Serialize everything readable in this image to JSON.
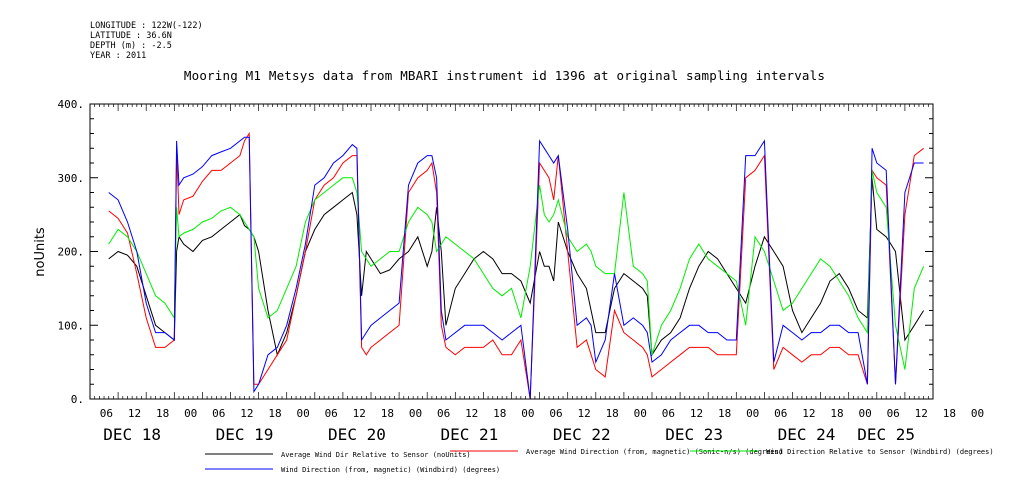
{
  "meta": {
    "longitude": "LONGITUDE : 122W(-122)",
    "latitude": "LATITUDE : 36.6N",
    "depth": "DEPTH (m) : -2.5",
    "year": "YEAR : 2011"
  },
  "chart_data": {
    "type": "line",
    "title": "Mooring M1 Metsys data from MBARI instrument id 1396 at original sampling intervals",
    "ylabel": "noUnits",
    "xlabel": "",
    "ylim": [
      0,
      400
    ],
    "yticks": [
      "0.",
      "100.",
      "200.",
      "300.",
      "400."
    ],
    "xlim": [
      0,
      180
    ],
    "x_unit": "hours since DEC 18 00:00",
    "hour_ticks": [
      "06",
      "12",
      "18",
      "00",
      "06",
      "12",
      "18",
      "00",
      "06",
      "12",
      "18",
      "00",
      "06",
      "12",
      "18",
      "00",
      "06",
      "12",
      "18",
      "00",
      "06",
      "12",
      "18",
      "00",
      "06",
      "12",
      "18",
      "00",
      "06",
      "12",
      "18",
      "00"
    ],
    "day_labels": [
      "DEC 18",
      "DEC 19",
      "DEC 20",
      "DEC 21",
      "DEC 22",
      "DEC 23",
      "DEC 24",
      "DEC 25"
    ],
    "grid": false,
    "legend_position": "bottom",
    "series": [
      {
        "name": "Average Wind Dir Relative to Sensor (noUnits)",
        "color": "#000000",
        "x": [
          4,
          6,
          8,
          10,
          12,
          14,
          16,
          18,
          18.5,
          19,
          20,
          22,
          24,
          26,
          28,
          30,
          32,
          33,
          34,
          35,
          36,
          38,
          40,
          42,
          44,
          46,
          48,
          50,
          52,
          54,
          56,
          57,
          58,
          59,
          60,
          62,
          64,
          66,
          68,
          70,
          72,
          73,
          74,
          75,
          76,
          78,
          80,
          82,
          84,
          86,
          88,
          90,
          92,
          94,
          96,
          97,
          98,
          99,
          100,
          102,
          104,
          106,
          107,
          108,
          110,
          112,
          114,
          116,
          118,
          119,
          120,
          122,
          124,
          126,
          128,
          130,
          132,
          134,
          136,
          138,
          140,
          142,
          144,
          146,
          148,
          150,
          152,
          154,
          156,
          158,
          160,
          162,
          164,
          166,
          167,
          168,
          170,
          172,
          174,
          176,
          178
        ],
        "y": [
          190,
          200,
          195,
          180,
          140,
          100,
          90,
          80,
          200,
          220,
          210,
          200,
          215,
          220,
          230,
          240,
          250,
          235,
          230,
          220,
          200,
          120,
          60,
          90,
          140,
          200,
          230,
          250,
          260,
          270,
          280,
          250,
          140,
          200,
          190,
          170,
          175,
          190,
          200,
          220,
          180,
          200,
          260,
          200,
          100,
          150,
          170,
          190,
          200,
          190,
          170,
          170,
          160,
          130,
          200,
          180,
          180,
          160,
          240,
          200,
          170,
          150,
          120,
          90,
          90,
          150,
          170,
          160,
          150,
          140,
          60,
          80,
          90,
          110,
          150,
          180,
          200,
          190,
          170,
          150,
          130,
          180,
          220,
          200,
          180,
          120,
          90,
          110,
          130,
          160,
          170,
          150,
          120,
          110,
          300,
          230,
          220,
          200,
          80,
          100,
          120
        ]
      },
      {
        "name": "Average Wind Direction (from, magnetic) (Sonic-n/s) (degrees)",
        "color": "#ff0000",
        "x": [
          4,
          6,
          8,
          10,
          12,
          14,
          16,
          18,
          18.5,
          19,
          20,
          22,
          24,
          26,
          28,
          30,
          32,
          33,
          34,
          35,
          36,
          38,
          40,
          42,
          44,
          46,
          48,
          50,
          52,
          54,
          56,
          57,
          58,
          59,
          60,
          62,
          64,
          66,
          68,
          70,
          72,
          73,
          74,
          75,
          76,
          78,
          80,
          82,
          84,
          86,
          88,
          90,
          92,
          94,
          96,
          97,
          98,
          99,
          100,
          102,
          104,
          106,
          107,
          108,
          110,
          112,
          114,
          116,
          118,
          119,
          120,
          122,
          124,
          126,
          128,
          130,
          132,
          134,
          136,
          138,
          140,
          142,
          144,
          146,
          148,
          150,
          152,
          154,
          156,
          158,
          160,
          162,
          164,
          166,
          167,
          168,
          170,
          172,
          174,
          176,
          178
        ],
        "y": [
          255,
          245,
          225,
          170,
          110,
          70,
          70,
          80,
          340,
          250,
          270,
          275,
          295,
          310,
          310,
          320,
          330,
          350,
          360,
          20,
          20,
          40,
          60,
          80,
          140,
          200,
          270,
          290,
          300,
          320,
          330,
          330,
          70,
          60,
          70,
          80,
          90,
          100,
          280,
          300,
          310,
          320,
          280,
          100,
          70,
          60,
          70,
          70,
          70,
          80,
          60,
          60,
          80,
          0,
          320,
          310,
          300,
          270,
          330,
          200,
          70,
          80,
          60,
          40,
          30,
          120,
          90,
          80,
          70,
          60,
          30,
          40,
          50,
          60,
          70,
          70,
          70,
          60,
          60,
          60,
          300,
          310,
          330,
          40,
          70,
          60,
          50,
          60,
          60,
          70,
          70,
          60,
          60,
          20,
          310,
          300,
          290,
          20,
          250,
          330,
          340
        ]
      },
      {
        "name": "Wind Direction Relative to Sensor (Windbird) (degrees)",
        "color": "#00ee00",
        "x": [
          4,
          6,
          8,
          10,
          12,
          14,
          16,
          18,
          18.5,
          19,
          20,
          22,
          24,
          26,
          28,
          30,
          32,
          33,
          34,
          35,
          36,
          38,
          40,
          42,
          44,
          46,
          48,
          50,
          52,
          54,
          56,
          57,
          58,
          59,
          60,
          62,
          64,
          66,
          68,
          70,
          72,
          73,
          74,
          75,
          76,
          78,
          80,
          82,
          84,
          86,
          88,
          90,
          92,
          94,
          96,
          97,
          98,
          99,
          100,
          102,
          104,
          106,
          107,
          108,
          110,
          112,
          114,
          116,
          118,
          119,
          120,
          122,
          124,
          126,
          128,
          130,
          132,
          134,
          136,
          138,
          140,
          142,
          144,
          146,
          148,
          150,
          152,
          154,
          156,
          158,
          160,
          162,
          164,
          166,
          167,
          168,
          170,
          172,
          174,
          176,
          178
        ],
        "y": [
          210,
          230,
          220,
          200,
          170,
          140,
          130,
          110,
          260,
          220,
          225,
          230,
          240,
          245,
          255,
          260,
          250,
          240,
          230,
          220,
          150,
          110,
          120,
          150,
          180,
          240,
          270,
          280,
          290,
          300,
          300,
          280,
          200,
          190,
          180,
          190,
          200,
          200,
          240,
          260,
          250,
          240,
          200,
          210,
          220,
          210,
          200,
          190,
          170,
          150,
          140,
          150,
          110,
          180,
          290,
          250,
          240,
          250,
          270,
          220,
          200,
          210,
          200,
          180,
          170,
          170,
          280,
          180,
          170,
          160,
          60,
          100,
          120,
          150,
          190,
          210,
          190,
          180,
          170,
          160,
          100,
          220,
          200,
          160,
          120,
          130,
          150,
          170,
          190,
          180,
          160,
          140,
          110,
          90,
          310,
          280,
          260,
          100,
          40,
          150,
          180
        ]
      },
      {
        "name": "Wind Direction (from, magnetic) (Windbird) (degrees)",
        "color": "#0000ff",
        "x": [
          4,
          6,
          8,
          10,
          12,
          14,
          16,
          18,
          18.5,
          19,
          20,
          22,
          24,
          26,
          28,
          30,
          32,
          33,
          34,
          35,
          36,
          38,
          40,
          42,
          44,
          46,
          48,
          50,
          52,
          54,
          56,
          57,
          58,
          59,
          60,
          62,
          64,
          66,
          68,
          70,
          72,
          73,
          74,
          75,
          76,
          78,
          80,
          82,
          84,
          86,
          88,
          90,
          92,
          94,
          96,
          97,
          98,
          99,
          100,
          102,
          104,
          106,
          107,
          108,
          110,
          112,
          114,
          116,
          118,
          119,
          120,
          122,
          124,
          126,
          128,
          130,
          132,
          134,
          136,
          138,
          140,
          142,
          144,
          146,
          148,
          150,
          152,
          154,
          156,
          158,
          160,
          162,
          164,
          166,
          167,
          168,
          170,
          172,
          174,
          176,
          178
        ],
        "y": [
          280,
          270,
          240,
          200,
          130,
          90,
          90,
          80,
          350,
          290,
          300,
          305,
          315,
          330,
          335,
          340,
          350,
          355,
          355,
          10,
          20,
          60,
          70,
          100,
          150,
          210,
          290,
          300,
          320,
          330,
          345,
          340,
          80,
          90,
          100,
          110,
          120,
          130,
          290,
          320,
          330,
          330,
          300,
          120,
          80,
          90,
          100,
          100,
          100,
          90,
          80,
          90,
          100,
          0,
          350,
          340,
          330,
          320,
          330,
          230,
          100,
          110,
          100,
          50,
          80,
          170,
          100,
          110,
          100,
          90,
          50,
          60,
          80,
          90,
          100,
          100,
          90,
          90,
          80,
          80,
          330,
          330,
          350,
          50,
          100,
          90,
          80,
          90,
          90,
          100,
          100,
          90,
          90,
          20,
          340,
          320,
          310,
          20,
          280,
          320,
          320
        ]
      }
    ]
  }
}
